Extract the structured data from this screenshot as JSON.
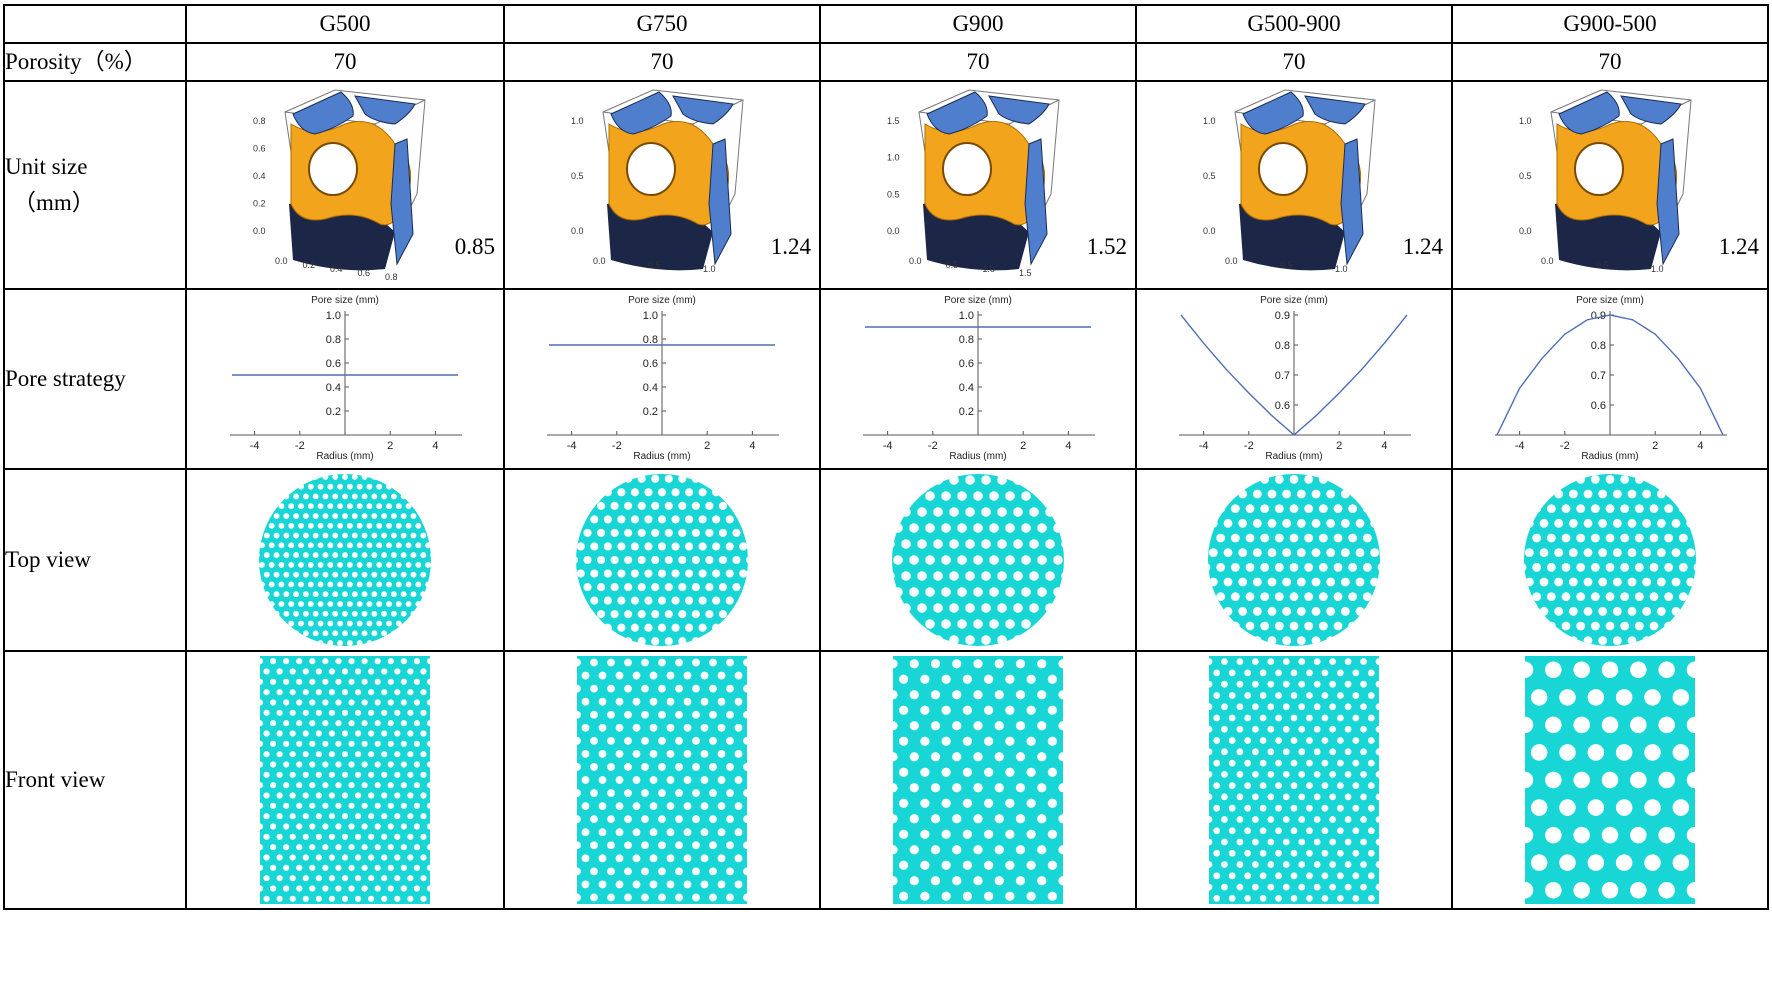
{
  "row_labels": {
    "porosity": "Porosity（%）",
    "unit_size_1": "Unit size",
    "unit_size_2": "（mm）",
    "pore_strategy": "Pore strategy",
    "top_view": "Top view",
    "front_view": "Front view"
  },
  "columns": [
    "G500",
    "G750",
    "G900",
    "G500-900",
    "G900-500"
  ],
  "porosity": [
    "70",
    "70",
    "70",
    "70",
    "70"
  ],
  "unit_size": [
    "0.85",
    "1.24",
    "1.52",
    "1.24",
    "1.24"
  ],
  "cube_axis_ticks": [
    [
      "0.0",
      "0.2",
      "0.4",
      "0.6",
      "0.8"
    ],
    [
      "0.0",
      "0.5",
      "1.0"
    ],
    [
      "0.0",
      "0.5",
      "1.0",
      "1.5"
    ],
    [
      "0.0",
      "0.5",
      "1.0"
    ],
    [
      "0.0",
      "0.5",
      "1.0"
    ]
  ],
  "colors": {
    "surface": "#f2a51c",
    "cut_face": "#4f7fcc",
    "base": "#1c2748",
    "lattice": "#18d6d6",
    "curve": "#4d6fb3"
  },
  "chart_data": [
    {
      "type": "line",
      "title": "G500",
      "xlabel": "Radius (mm)",
      "ylabel": "Pore size (mm)",
      "xlim": [
        -5,
        5
      ],
      "ylim": [
        0,
        1.0
      ],
      "x_ticks": [
        "-4",
        "-2",
        "2",
        "4"
      ],
      "y_ticks": [
        "0.2",
        "0.4",
        "0.6",
        "0.8",
        "1.0"
      ],
      "series": [
        {
          "x": [
            -5,
            0,
            5
          ],
          "y": [
            0.5,
            0.5,
            0.5
          ]
        }
      ]
    },
    {
      "type": "line",
      "title": "G750",
      "xlabel": "Radius (mm)",
      "ylabel": "Pore size (mm)",
      "xlim": [
        -5,
        5
      ],
      "ylim": [
        0,
        1.0
      ],
      "x_ticks": [
        "-4",
        "-2",
        "2",
        "4"
      ],
      "y_ticks": [
        "0.2",
        "0.4",
        "0.6",
        "0.8",
        "1.0"
      ],
      "series": [
        {
          "x": [
            -5,
            0,
            5
          ],
          "y": [
            0.75,
            0.75,
            0.75
          ]
        }
      ]
    },
    {
      "type": "line",
      "title": "G900",
      "xlabel": "Radius (mm)",
      "ylabel": "Pore size (mm)",
      "xlim": [
        -5,
        5
      ],
      "ylim": [
        0,
        1.0
      ],
      "x_ticks": [
        "-4",
        "-2",
        "2",
        "4"
      ],
      "y_ticks": [
        "0.2",
        "0.4",
        "0.6",
        "0.8",
        "1.0"
      ],
      "series": [
        {
          "x": [
            -5,
            0,
            5
          ],
          "y": [
            0.9,
            0.9,
            0.9
          ]
        }
      ]
    },
    {
      "type": "line",
      "title": "G500-900",
      "xlabel": "Radius (mm)",
      "ylabel": "Pore size (mm)",
      "xlim": [
        -5,
        5
      ],
      "ylim": [
        0.5,
        0.9
      ],
      "x_ticks": [
        "-4",
        "-2",
        "2",
        "4"
      ],
      "y_ticks": [
        "0.6",
        "0.7",
        "0.8",
        "0.9"
      ],
      "series": [
        {
          "x": [
            -5,
            -4,
            -3,
            -2,
            -1,
            0,
            1,
            2,
            3,
            4,
            5
          ],
          "y": [
            0.9,
            0.806,
            0.719,
            0.64,
            0.566,
            0.5,
            0.566,
            0.64,
            0.719,
            0.806,
            0.9
          ]
        }
      ]
    },
    {
      "type": "line",
      "title": "G900-500",
      "xlabel": "Radius (mm)",
      "ylabel": "Pore size (mm)",
      "xlim": [
        -5,
        5
      ],
      "ylim": [
        0.5,
        0.9
      ],
      "x_ticks": [
        "-4",
        "-2",
        "2",
        "4"
      ],
      "y_ticks": [
        "0.6",
        "0.7",
        "0.8",
        "0.9"
      ],
      "series": [
        {
          "x": [
            -5,
            -4,
            -3,
            -2,
            -1,
            0,
            1,
            2,
            3,
            4,
            5
          ],
          "y": [
            0.5,
            0.656,
            0.756,
            0.836,
            0.884,
            0.9,
            0.884,
            0.836,
            0.756,
            0.656,
            0.5
          ]
        }
      ]
    }
  ],
  "lattice": [
    {
      "top_rows": 18,
      "front_rows": 24,
      "front_cols": 13
    },
    {
      "top_rows": 13,
      "front_rows": 19,
      "front_cols": 10
    },
    {
      "top_rows": 11,
      "front_rows": 16,
      "front_cols": 8
    },
    {
      "top_rows": 12,
      "front_rows": 22,
      "front_cols": 11
    },
    {
      "top_rows": 12,
      "front_rows": 9,
      "front_cols": 6
    }
  ]
}
